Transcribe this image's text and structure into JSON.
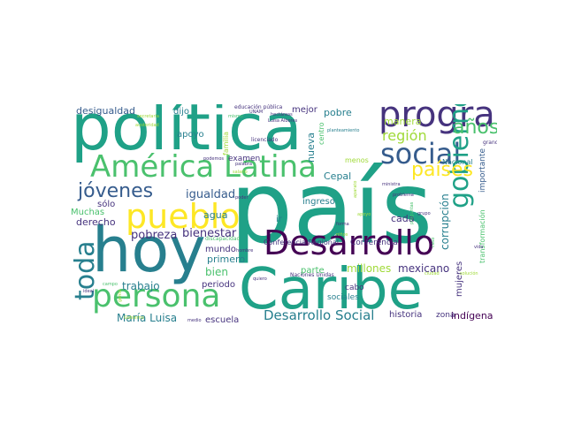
{
  "palette": {
    "dark_purple": "#440154",
    "indigo": "#46337e",
    "blue": "#365c8d",
    "steel": "#277f8e",
    "teal": "#1fa187",
    "green": "#4ac16d",
    "lime": "#a0da39",
    "yellow": "#fde725"
  },
  "words": [
    {
      "text": "política",
      "color": "#1fa187"
    },
    {
      "text": "país",
      "color": "#1fa187"
    },
    {
      "text": "hoy",
      "color": "#277f8e"
    },
    {
      "text": "Caribe",
      "color": "#1fa187"
    },
    {
      "text": "América Latina",
      "color": "#4ac16d"
    },
    {
      "text": "pueblo",
      "color": "#fde725"
    },
    {
      "text": "Desarrollo",
      "color": "#440154"
    },
    {
      "text": "programa",
      "color": "#46337e"
    },
    {
      "text": "persona",
      "color": "#4ac16d"
    },
    {
      "text": "social",
      "color": "#365c8d"
    },
    {
      "text": "gobierno",
      "color": "#1fa187"
    },
    {
      "text": "toda",
      "color": "#277f8e"
    },
    {
      "text": "jóvenes",
      "color": "#365c8d"
    },
    {
      "text": "países",
      "color": "#fde725"
    },
    {
      "text": "años",
      "color": "#4ac16d"
    },
    {
      "text": "región",
      "color": "#a0da39"
    },
    {
      "text": "Desarrollo Social",
      "color": "#277f8e"
    },
    {
      "text": "desigualdad",
      "color": "#365c8d"
    },
    {
      "text": "igualdad",
      "color": "#365c8d"
    },
    {
      "text": "pobreza",
      "color": "#46337e"
    },
    {
      "text": "bienestar",
      "color": "#46337e"
    },
    {
      "text": "corrupción",
      "color": "#277f8e"
    },
    {
      "text": "millones",
      "color": "#a0da39"
    },
    {
      "text": "mexicano",
      "color": "#46337e"
    },
    {
      "text": "trabajo",
      "color": "#277f8e"
    },
    {
      "text": "María Luisa",
      "color": "#277f8e"
    },
    {
      "text": "escuela",
      "color": "#46337e"
    },
    {
      "text": "historia",
      "color": "#46337e"
    },
    {
      "text": "indígena",
      "color": "#440154"
    },
    {
      "text": "derecho",
      "color": "#46337e"
    },
    {
      "text": "primero",
      "color": "#277f8e"
    },
    {
      "text": "bien",
      "color": "#4ac16d"
    },
    {
      "text": "mundo",
      "color": "#46337e"
    },
    {
      "text": "periodo",
      "color": "#46337e"
    },
    {
      "text": "pobre",
      "color": "#277f8e"
    },
    {
      "text": "mejor",
      "color": "#46337e"
    },
    {
      "text": "agua",
      "color": "#277f8e"
    },
    {
      "text": "apoyo",
      "color": "#277f8e"
    },
    {
      "text": "dijo",
      "color": "#277f8e"
    },
    {
      "text": "familia",
      "color": "#a0da39"
    },
    {
      "text": "examen",
      "color": "#46337e"
    },
    {
      "text": "nueva",
      "color": "#277f8e"
    },
    {
      "text": "centro",
      "color": "#4ac16d"
    },
    {
      "text": "Cepal",
      "color": "#277f8e"
    },
    {
      "text": "ingreso",
      "color": "#277f8e"
    },
    {
      "text": "cada",
      "color": "#46337e"
    },
    {
      "text": "Conferencia",
      "color": "#46337e"
    },
    {
      "text": "Conferencia Regional",
      "color": "#46337e"
    },
    {
      "text": "mujeres",
      "color": "#46337e"
    },
    {
      "text": "parte",
      "color": "#4ac16d"
    },
    {
      "text": "cabo",
      "color": "#46337e"
    },
    {
      "text": "sociales",
      "color": "#277f8e"
    },
    {
      "text": "zona",
      "color": "#46337e"
    },
    {
      "text": "Muchas",
      "color": "#4ac16d"
    },
    {
      "text": "sólo",
      "color": "#46337e"
    },
    {
      "text": "ir",
      "color": "#277f8e"
    },
    {
      "text": "manera",
      "color": "#a0da39"
    },
    {
      "text": "Nacional",
      "color": "#277f8e"
    },
    {
      "text": "importante",
      "color": "#365c8d"
    },
    {
      "text": "menos",
      "color": "#a0da39"
    },
    {
      "text": "transformación",
      "color": "#4ac16d"
    },
    {
      "text": "grande",
      "color": "#46337e"
    },
    {
      "text": "Naciones Unidas",
      "color": "#46337e"
    },
    {
      "text": "educación pública",
      "color": "#46337e"
    },
    {
      "text": "Luisa Albores",
      "color": "#46337e"
    },
    {
      "text": "licenciado",
      "color": "#46337e"
    },
    {
      "text": "planteamiento",
      "color": "#277f8e"
    },
    {
      "text": "hectáreas",
      "color": "#46337e"
    },
    {
      "text": "UNAM",
      "color": "#46337e"
    },
    {
      "text": "secretaria",
      "color": "#a0da39"
    },
    {
      "text": "austeridad",
      "color": "#a0da39"
    },
    {
      "text": "palabra",
      "color": "#46337e"
    },
    {
      "text": "podemos",
      "color": "#46337e"
    },
    {
      "text": "salario",
      "color": "#a0da39"
    },
    {
      "text": "poder",
      "color": "#46337e"
    },
    {
      "text": "problema",
      "color": "#46337e"
    },
    {
      "text": "ministra",
      "color": "#46337e"
    },
    {
      "text": "aparato",
      "color": "#a0da39"
    },
    {
      "text": "apoyo",
      "color": "#a0da39"
    },
    {
      "text": "forma",
      "color": "#46337e"
    },
    {
      "text": "grupo",
      "color": "#46337e"
    },
    {
      "text": "preguntas",
      "color": "#4ac16d"
    },
    {
      "text": "discapacidad",
      "color": "#4ac16d"
    },
    {
      "text": "hombre",
      "color": "#46337e"
    },
    {
      "text": "quiero",
      "color": "#46337e"
    },
    {
      "text": "vida",
      "color": "#46337e"
    },
    {
      "text": "caso",
      "color": "#4ac16d"
    },
    {
      "text": "ciudad",
      "color": "#a0da39"
    },
    {
      "text": "medio",
      "color": "#46337e"
    },
    {
      "text": "campo",
      "color": "#4ac16d"
    },
    {
      "text": "gente",
      "color": "#a0da39"
    },
    {
      "text": "ideal",
      "color": "#46337e"
    },
    {
      "text": "solución",
      "color": "#a0da39"
    },
    {
      "text": "Gobierno",
      "color": "#a0da39"
    },
    {
      "text": "niños",
      "color": "#a0da39"
    },
    {
      "text": "mismo",
      "color": "#4ac16d"
    }
  ]
}
